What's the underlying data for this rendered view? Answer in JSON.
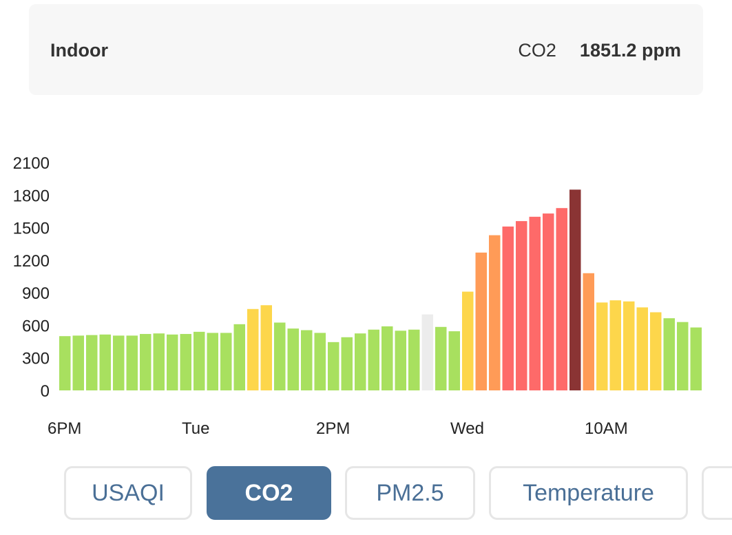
{
  "header": {
    "location": "Indoor",
    "metric_name": "CO2",
    "metric_value": "1851.2 ppm"
  },
  "chart_data": {
    "type": "bar",
    "ylim": [
      0,
      2100
    ],
    "y_ticks": [
      "2100",
      "1800",
      "1500",
      "1200",
      "900",
      "600",
      "300",
      "0"
    ],
    "x_tick_labels": [
      "6PM",
      "Tue",
      "2PM",
      "Wed",
      "10AM"
    ],
    "values": [
      500,
      505,
      510,
      515,
      505,
      505,
      520,
      525,
      515,
      520,
      540,
      530,
      530,
      610,
      750,
      785,
      625,
      570,
      555,
      530,
      445,
      490,
      525,
      560,
      590,
      550,
      560,
      700,
      585,
      545,
      910,
      1270,
      1430,
      1510,
      1560,
      1600,
      1630,
      1680,
      1850,
      1080,
      810,
      830,
      820,
      765,
      720,
      665,
      630,
      580
    ],
    "colors": {
      "good": "#a8e05f",
      "moderate": "#fdd64b",
      "elevated": "#ff9b57",
      "high": "#fe6a69",
      "very_high": "#8a3434",
      "no_data": "#ececec"
    },
    "bar_levels": [
      "good",
      "good",
      "good",
      "good",
      "good",
      "good",
      "good",
      "good",
      "good",
      "good",
      "good",
      "good",
      "good",
      "good",
      "moderate",
      "moderate",
      "good",
      "good",
      "good",
      "good",
      "good",
      "good",
      "good",
      "good",
      "good",
      "good",
      "good",
      "no_data",
      "good",
      "good",
      "moderate",
      "elevated",
      "elevated",
      "high",
      "high",
      "high",
      "high",
      "high",
      "very_high",
      "elevated",
      "moderate",
      "moderate",
      "moderate",
      "moderate",
      "moderate",
      "good",
      "good",
      "good"
    ],
    "grid": false,
    "legend": "none"
  },
  "tabs": [
    {
      "label": "USAQI",
      "active": false
    },
    {
      "label": "CO2",
      "active": true
    },
    {
      "label": "PM2.5",
      "active": false
    },
    {
      "label": "Temperature",
      "active": false
    },
    {
      "label": "",
      "active": false
    }
  ]
}
